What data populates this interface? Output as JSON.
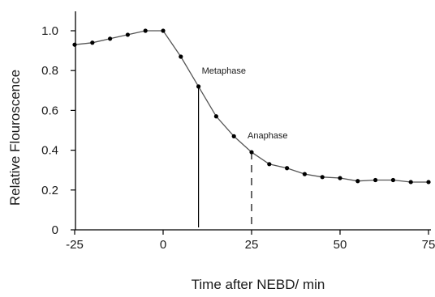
{
  "chart_data": {
    "type": "line",
    "title": "",
    "xlabel": "Time after NEBD/ min",
    "ylabel": "Relative Flouroscence",
    "xlim": [
      -25,
      75
    ],
    "ylim": [
      0,
      1.1
    ],
    "grid": false,
    "legend": "none",
    "x_ticks": [
      -25,
      0,
      25,
      50,
      75
    ],
    "x_tick_labels": [
      "-25",
      "0",
      "25",
      "50",
      "75"
    ],
    "y_ticks": [
      0,
      0.2,
      0.4,
      0.6,
      0.8,
      1.0
    ],
    "y_tick_labels": [
      "0",
      "0.2",
      "0.4",
      "0.6",
      "0.8",
      "1.0"
    ],
    "series": [
      {
        "x": [
          -25,
          -20,
          -15,
          -10,
          -5,
          0,
          5,
          10,
          15,
          20,
          25,
          30,
          35,
          40,
          45,
          50,
          55,
          60,
          65,
          70,
          75
        ],
        "values": [
          0.93,
          0.94,
          0.96,
          0.98,
          1.0,
          1.0,
          0.87,
          0.72,
          0.57,
          0.47,
          0.39,
          0.33,
          0.31,
          0.28,
          0.265,
          0.26,
          0.245,
          0.25,
          0.25,
          0.24,
          0.24
        ]
      }
    ],
    "annotations": [
      {
        "label": "Metaphase",
        "x": 10,
        "y": 0.72,
        "line_style": "solid"
      },
      {
        "label": "Anaphase",
        "x": 25,
        "y": 0.39,
        "line_style": "dashed"
      }
    ],
    "colors": {
      "line": "#555555",
      "marker": "#000000",
      "axis": "#000000"
    }
  }
}
